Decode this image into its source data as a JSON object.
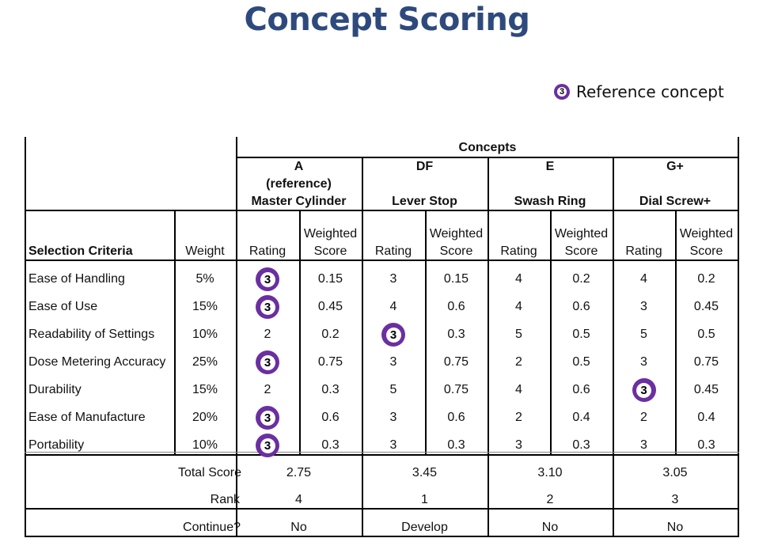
{
  "title": "Concept Scoring",
  "legend": {
    "badge_value": "3",
    "label": "Reference concept",
    "badge_color": "#6b2fa0"
  },
  "table": {
    "concepts_header": "Concepts",
    "columns": {
      "criteria": "Selection Criteria",
      "weight": "Weight",
      "rating": "Rating",
      "weighted_line1": "Weighted",
      "weighted_line2": "Score"
    },
    "concepts": [
      {
        "code": "A",
        "note": "(reference)",
        "name": "Master Cylinder",
        "total": "2.75",
        "rank": "4",
        "continue": "No"
      },
      {
        "code": "DF",
        "note": "",
        "name": "Lever Stop",
        "total": "3.45",
        "rank": "1",
        "continue": "Develop"
      },
      {
        "code": "E",
        "note": "",
        "name": "Swash Ring",
        "total": "3.10",
        "rank": "2",
        "continue": "No"
      },
      {
        "code": "G+",
        "note": "",
        "name": "Dial Screw+",
        "total": "3.05",
        "rank": "3",
        "continue": "No"
      }
    ],
    "rows": [
      {
        "criterion": "Ease of Handling",
        "weight": "5%",
        "cells": [
          [
            "3",
            "0.15"
          ],
          [
            "3",
            "0.15"
          ],
          [
            "4",
            "0.2"
          ],
          [
            "4",
            "0.2"
          ]
        ]
      },
      {
        "criterion": "Ease of Use",
        "weight": "15%",
        "cells": [
          [
            "3",
            "0.45"
          ],
          [
            "4",
            "0.6"
          ],
          [
            "4",
            "0.6"
          ],
          [
            "3",
            "0.45"
          ]
        ]
      },
      {
        "criterion": "Readability of Settings",
        "weight": "10%",
        "cells": [
          [
            "2",
            "0.2"
          ],
          [
            "3",
            "0.3"
          ],
          [
            "5",
            "0.5"
          ],
          [
            "5",
            "0.5"
          ]
        ]
      },
      {
        "criterion": "Dose Metering Accuracy",
        "weight": "25%",
        "cells": [
          [
            "3",
            "0.75"
          ],
          [
            "3",
            "0.75"
          ],
          [
            "2",
            "0.5"
          ],
          [
            "3",
            "0.75"
          ]
        ]
      },
      {
        "criterion": "Durability",
        "weight": "15%",
        "cells": [
          [
            "2",
            "0.3"
          ],
          [
            "5",
            "0.75"
          ],
          [
            "4",
            "0.6"
          ],
          [
            "3",
            "0.45"
          ]
        ]
      },
      {
        "criterion": "Ease of Manufacture",
        "weight": "20%",
        "cells": [
          [
            "3",
            "0.6"
          ],
          [
            "3",
            "0.6"
          ],
          [
            "2",
            "0.4"
          ],
          [
            "2",
            "0.4"
          ]
        ]
      },
      {
        "criterion": "Portability",
        "weight": "10%",
        "cells": [
          [
            "3",
            "0.3"
          ],
          [
            "3",
            "0.3"
          ],
          [
            "3",
            "0.3"
          ],
          [
            "3",
            "0.3"
          ]
        ]
      }
    ],
    "reference_marks": [
      [
        0,
        0
      ],
      [
        1,
        0
      ],
      [
        2,
        1
      ],
      [
        3,
        0
      ],
      [
        4,
        3
      ],
      [
        5,
        0
      ],
      [
        6,
        0
      ]
    ],
    "footer": {
      "total_label": "Total Score",
      "rank_label": "Rank",
      "continue_label": "Continue?"
    }
  }
}
